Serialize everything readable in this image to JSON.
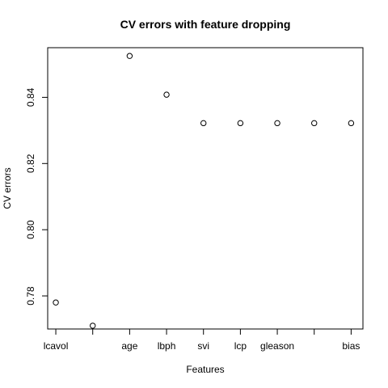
{
  "chart_data": {
    "type": "scatter",
    "title": "CV errors with feature dropping",
    "xlabel": "Features",
    "ylabel": "CV errors",
    "x_positions": [
      1,
      2,
      3,
      4,
      5,
      6,
      7,
      8,
      9
    ],
    "x_tick_labels": [
      "lcavol",
      "",
      "age",
      "lbph",
      "svi",
      "lcp",
      "gleason",
      "",
      "bias"
    ],
    "y_ticks": [
      "0.78",
      "0.80",
      "0.82",
      "0.84"
    ],
    "ylim": [
      0.77,
      0.855
    ],
    "xlim": [
      0.78,
      9.32
    ],
    "values": [
      0.778,
      0.771,
      0.8525,
      0.8408,
      0.8322,
      0.8322,
      0.8322,
      0.8322,
      0.8322
    ],
    "marker": "open-circle",
    "grid": false,
    "colors": {
      "marker": "#000000",
      "axis": "#000000",
      "background": "#ffffff"
    }
  }
}
